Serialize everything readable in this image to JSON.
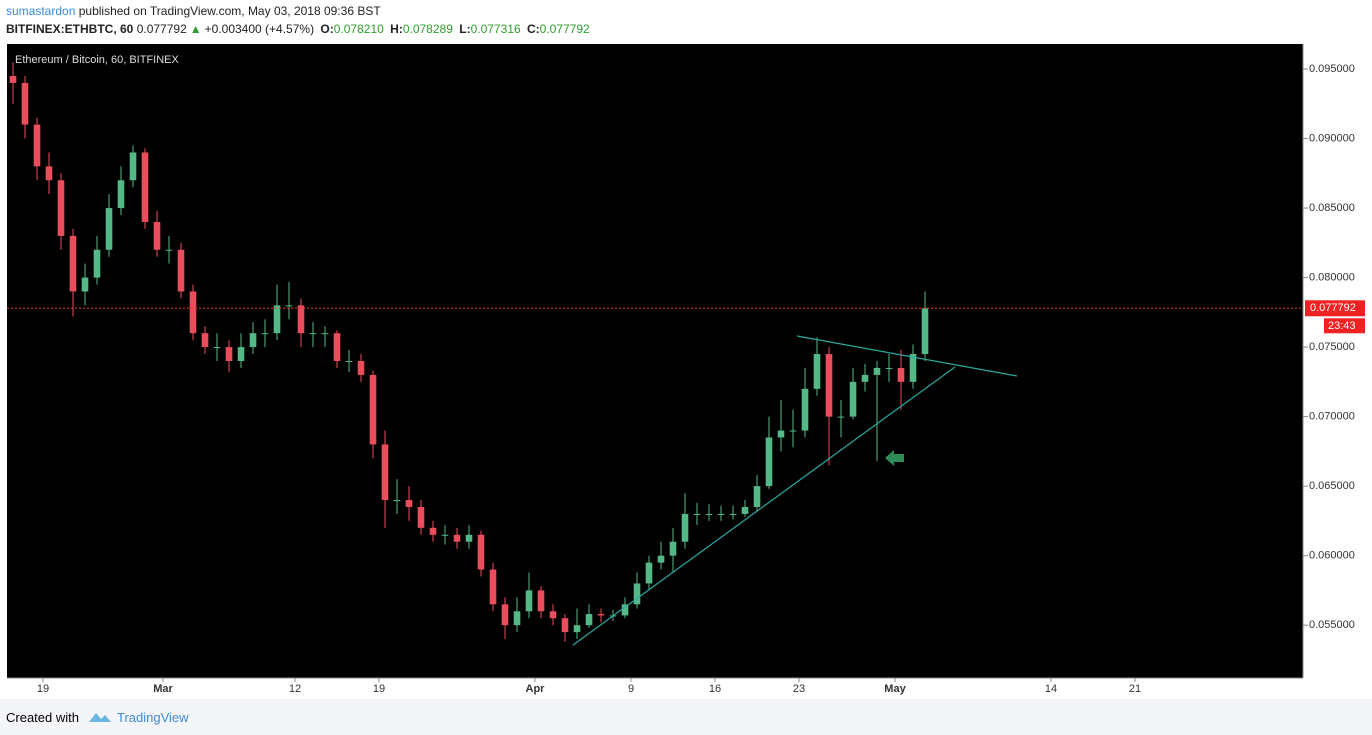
{
  "header": {
    "author": "sumastardon",
    "published": "published on TradingView.com, May 03, 2018 09:36 BST",
    "symbol": "BITFINEX:ETHBTC, 60",
    "last": "0.077792",
    "arrow": "▲",
    "change": "+0.003400 (+4.57%)",
    "open_label": "O:",
    "open": "0.078210",
    "high_label": "H:",
    "high": "0.078289",
    "low_label": "L:",
    "low": "0.077316",
    "close_label": "C:",
    "close": "0.077792"
  },
  "chart_data": {
    "type": "candlestick",
    "title": "Ethereum / Bitcoin, 60, BITFINEX",
    "up_color": "#53b987",
    "down_color": "#eb4d5c",
    "x": [
      "2018-02-16",
      "2018-02-17",
      "2018-02-18",
      "2018-02-19",
      "2018-02-20",
      "2018-02-21",
      "2018-02-22",
      "2018-02-23",
      "2018-02-24",
      "2018-02-25",
      "2018-02-26",
      "2018-02-27",
      "2018-02-28",
      "2018-03-01",
      "2018-03-02",
      "2018-03-03",
      "2018-03-04",
      "2018-03-05",
      "2018-03-06",
      "2018-03-07",
      "2018-03-08",
      "2018-03-09",
      "2018-03-10",
      "2018-03-11",
      "2018-03-12",
      "2018-03-13",
      "2018-03-14",
      "2018-03-15",
      "2018-03-16",
      "2018-03-17",
      "2018-03-18",
      "2018-03-19",
      "2018-03-20",
      "2018-03-21",
      "2018-03-22",
      "2018-03-23",
      "2018-03-24",
      "2018-03-25",
      "2018-03-26",
      "2018-03-27",
      "2018-03-28",
      "2018-03-29",
      "2018-03-30",
      "2018-03-31",
      "2018-04-01",
      "2018-04-02",
      "2018-04-03",
      "2018-04-04",
      "2018-04-05",
      "2018-04-06",
      "2018-04-07",
      "2018-04-08",
      "2018-04-09",
      "2018-04-10",
      "2018-04-11",
      "2018-04-12",
      "2018-04-13",
      "2018-04-14",
      "2018-04-15",
      "2018-04-16",
      "2018-04-17",
      "2018-04-18",
      "2018-04-19",
      "2018-04-20",
      "2018-04-21",
      "2018-04-22",
      "2018-04-23",
      "2018-04-24",
      "2018-04-25",
      "2018-04-26",
      "2018-04-27",
      "2018-04-28",
      "2018-04-29",
      "2018-04-30",
      "2018-05-01",
      "2018-05-02",
      "2018-05-03"
    ],
    "open": [
      0.0945,
      0.094,
      0.091,
      0.088,
      0.087,
      0.083,
      0.079,
      0.08,
      0.082,
      0.085,
      0.087,
      0.089,
      0.084,
      0.082,
      0.082,
      0.079,
      0.076,
      0.075,
      0.075,
      0.074,
      0.075,
      0.076,
      0.076,
      0.078,
      0.078,
      0.076,
      0.076,
      0.076,
      0.074,
      0.074,
      0.073,
      0.068,
      0.064,
      0.064,
      0.0635,
      0.062,
      0.0615,
      0.0615,
      0.061,
      0.0615,
      0.059,
      0.0565,
      0.055,
      0.056,
      0.0575,
      0.056,
      0.0555,
      0.0545,
      0.055,
      0.0558,
      0.0557,
      0.0557,
      0.0565,
      0.058,
      0.0595,
      0.06,
      0.061,
      0.063,
      0.063,
      0.063,
      0.063,
      0.063,
      0.0635,
      0.065,
      0.0685,
      0.069,
      0.069,
      0.072,
      0.0745,
      0.07,
      0.07,
      0.0725,
      0.073,
      0.0735,
      0.0735,
      0.0725,
      0.0745
    ],
    "high": [
      0.0955,
      0.0945,
      0.0915,
      0.089,
      0.0875,
      0.0835,
      0.081,
      0.083,
      0.086,
      0.088,
      0.0895,
      0.0893,
      0.0848,
      0.083,
      0.0825,
      0.0795,
      0.0765,
      0.076,
      0.0755,
      0.076,
      0.0768,
      0.077,
      0.0795,
      0.0797,
      0.0785,
      0.0768,
      0.0765,
      0.0762,
      0.0748,
      0.0745,
      0.0733,
      0.069,
      0.0655,
      0.065,
      0.064,
      0.0625,
      0.0622,
      0.062,
      0.0622,
      0.0618,
      0.0595,
      0.057,
      0.057,
      0.0588,
      0.0578,
      0.0565,
      0.0558,
      0.0562,
      0.0565,
      0.0562,
      0.0561,
      0.057,
      0.0588,
      0.06,
      0.061,
      0.062,
      0.0645,
      0.0638,
      0.0637,
      0.0636,
      0.0636,
      0.064,
      0.0658,
      0.07,
      0.0712,
      0.0705,
      0.0735,
      0.0757,
      0.075,
      0.0712,
      0.0735,
      0.0738,
      0.074,
      0.0745,
      0.0748,
      0.0752,
      0.079
    ],
    "low": [
      0.0925,
      0.09,
      0.087,
      0.086,
      0.082,
      0.0772,
      0.078,
      0.0795,
      0.0815,
      0.0845,
      0.0865,
      0.0835,
      0.0815,
      0.081,
      0.0785,
      0.0755,
      0.0745,
      0.074,
      0.0732,
      0.0735,
      0.0745,
      0.075,
      0.0755,
      0.077,
      0.075,
      0.075,
      0.075,
      0.0735,
      0.0732,
      0.0725,
      0.067,
      0.062,
      0.063,
      0.0625,
      0.0615,
      0.061,
      0.0608,
      0.0605,
      0.0605,
      0.0585,
      0.056,
      0.054,
      0.0545,
      0.0555,
      0.0555,
      0.055,
      0.0538,
      0.054,
      0.0548,
      0.0552,
      0.0553,
      0.0555,
      0.0562,
      0.0575,
      0.059,
      0.0588,
      0.0605,
      0.0622,
      0.0625,
      0.0625,
      0.0626,
      0.0628,
      0.0632,
      0.0648,
      0.0675,
      0.0678,
      0.0685,
      0.0715,
      0.0665,
      0.0685,
      0.0698,
      0.0718,
      0.0668,
      0.0725,
      0.0705,
      0.072,
      0.074
    ],
    "close": [
      0.094,
      0.091,
      0.088,
      0.087,
      0.083,
      0.079,
      0.08,
      0.082,
      0.085,
      0.087,
      0.089,
      0.084,
      0.082,
      0.082,
      0.079,
      0.076,
      0.075,
      0.075,
      0.074,
      0.075,
      0.076,
      0.076,
      0.078,
      0.078,
      0.076,
      0.076,
      0.076,
      0.074,
      0.074,
      0.073,
      0.068,
      0.064,
      0.064,
      0.0635,
      0.062,
      0.0615,
      0.0615,
      0.061,
      0.0615,
      0.059,
      0.0565,
      0.055,
      0.056,
      0.0575,
      0.056,
      0.0555,
      0.0545,
      0.055,
      0.0558,
      0.0557,
      0.0557,
      0.0565,
      0.058,
      0.0595,
      0.06,
      0.061,
      0.063,
      0.063,
      0.063,
      0.063,
      0.063,
      0.0635,
      0.065,
      0.0685,
      0.069,
      0.069,
      0.072,
      0.0745,
      0.07,
      0.07,
      0.0725,
      0.073,
      0.0735,
      0.0735,
      0.0725,
      0.0745,
      0.077792
    ],
    "xlim": [
      "2018-02-16",
      "2018-06-04"
    ],
    "xticks": [
      {
        "value": "2018-02-19",
        "label": "19"
      },
      {
        "value": "2018-03-01",
        "label": "Mar"
      },
      {
        "value": "2018-03-12",
        "label": "12"
      },
      {
        "value": "2018-03-19",
        "label": "19"
      },
      {
        "value": "2018-04-01",
        "label": "Apr"
      },
      {
        "value": "2018-04-09",
        "label": "9"
      },
      {
        "value": "2018-04-16",
        "label": "16"
      },
      {
        "value": "2018-04-23",
        "label": "23"
      },
      {
        "value": "2018-05-01",
        "label": "May"
      },
      {
        "value": "2018-05-14",
        "label": "14"
      },
      {
        "value": "2018-05-21",
        "label": "21"
      }
    ],
    "ylim": [
      0.0512,
      0.0968
    ],
    "yticks": [
      {
        "value": 0.055,
        "label": "0.055000"
      },
      {
        "value": 0.06,
        "label": "0.060000"
      },
      {
        "value": 0.065,
        "label": "0.065000"
      },
      {
        "value": 0.07,
        "label": "0.070000"
      },
      {
        "value": 0.075,
        "label": "0.075000"
      },
      {
        "value": 0.08,
        "label": "0.080000"
      },
      {
        "value": 0.085,
        "label": "0.085000"
      },
      {
        "value": 0.09,
        "label": "0.090000"
      },
      {
        "value": 0.095,
        "label": "0.095000"
      }
    ],
    "last_price": 0.077792,
    "countdown": "23:43"
  },
  "footer": {
    "created": "Created with",
    "brand": "TradingView"
  }
}
